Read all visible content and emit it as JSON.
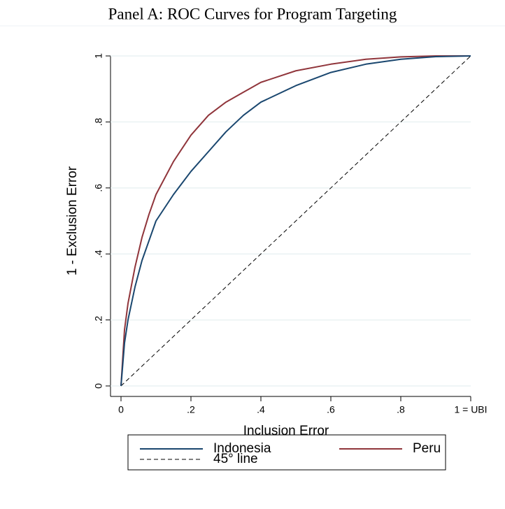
{
  "chart_data": {
    "type": "line",
    "title": "Panel A: ROC Curves for Program Targeting",
    "x_label": "Inclusion Error",
    "y_label": "1 - Exclusion Error",
    "xlim": [
      0,
      1
    ],
    "ylim": [
      0,
      1
    ],
    "xticks": [
      0,
      {
        "value": 0.2,
        "label": ".2"
      },
      {
        "value": 0.4,
        "label": ".4"
      },
      {
        "value": 0.6,
        "label": ".6"
      },
      {
        "value": 0.8,
        "label": ".8"
      },
      {
        "value": 1,
        "label": "1 = UBI"
      }
    ],
    "yticks": [
      0,
      {
        "value": 0.2,
        "label": ".2"
      },
      {
        "value": 0.4,
        "label": ".4"
      },
      {
        "value": 0.6,
        "label": ".6"
      },
      {
        "value": 0.8,
        "label": ".8"
      },
      1
    ],
    "grid": true,
    "legend": "bottom",
    "series": [
      {
        "name": "Indonesia",
        "color": "#1a476f",
        "dash": "solid",
        "x": [
          0,
          0.01,
          0.02,
          0.04,
          0.06,
          0.08,
          0.1,
          0.15,
          0.2,
          0.25,
          0.3,
          0.35,
          0.4,
          0.5,
          0.6,
          0.7,
          0.8,
          0.9,
          1
        ],
        "values": [
          0,
          0.13,
          0.2,
          0.3,
          0.38,
          0.44,
          0.5,
          0.58,
          0.65,
          0.71,
          0.77,
          0.82,
          0.86,
          0.91,
          0.95,
          0.975,
          0.99,
          0.998,
          1
        ]
      },
      {
        "name": "Peru",
        "color": "#90353b",
        "dash": "solid",
        "x": [
          0,
          0.01,
          0.02,
          0.04,
          0.06,
          0.08,
          0.1,
          0.15,
          0.2,
          0.25,
          0.3,
          0.35,
          0.4,
          0.5,
          0.6,
          0.7,
          0.8,
          0.9,
          1
        ],
        "values": [
          0,
          0.17,
          0.25,
          0.36,
          0.45,
          0.52,
          0.58,
          0.68,
          0.76,
          0.82,
          0.86,
          0.89,
          0.92,
          0.955,
          0.975,
          0.99,
          0.997,
          1,
          1
        ]
      },
      {
        "name": "45° line",
        "color": "#000000",
        "dash": "dashed",
        "x": [
          0,
          1
        ],
        "values": [
          0,
          1
        ]
      }
    ]
  }
}
